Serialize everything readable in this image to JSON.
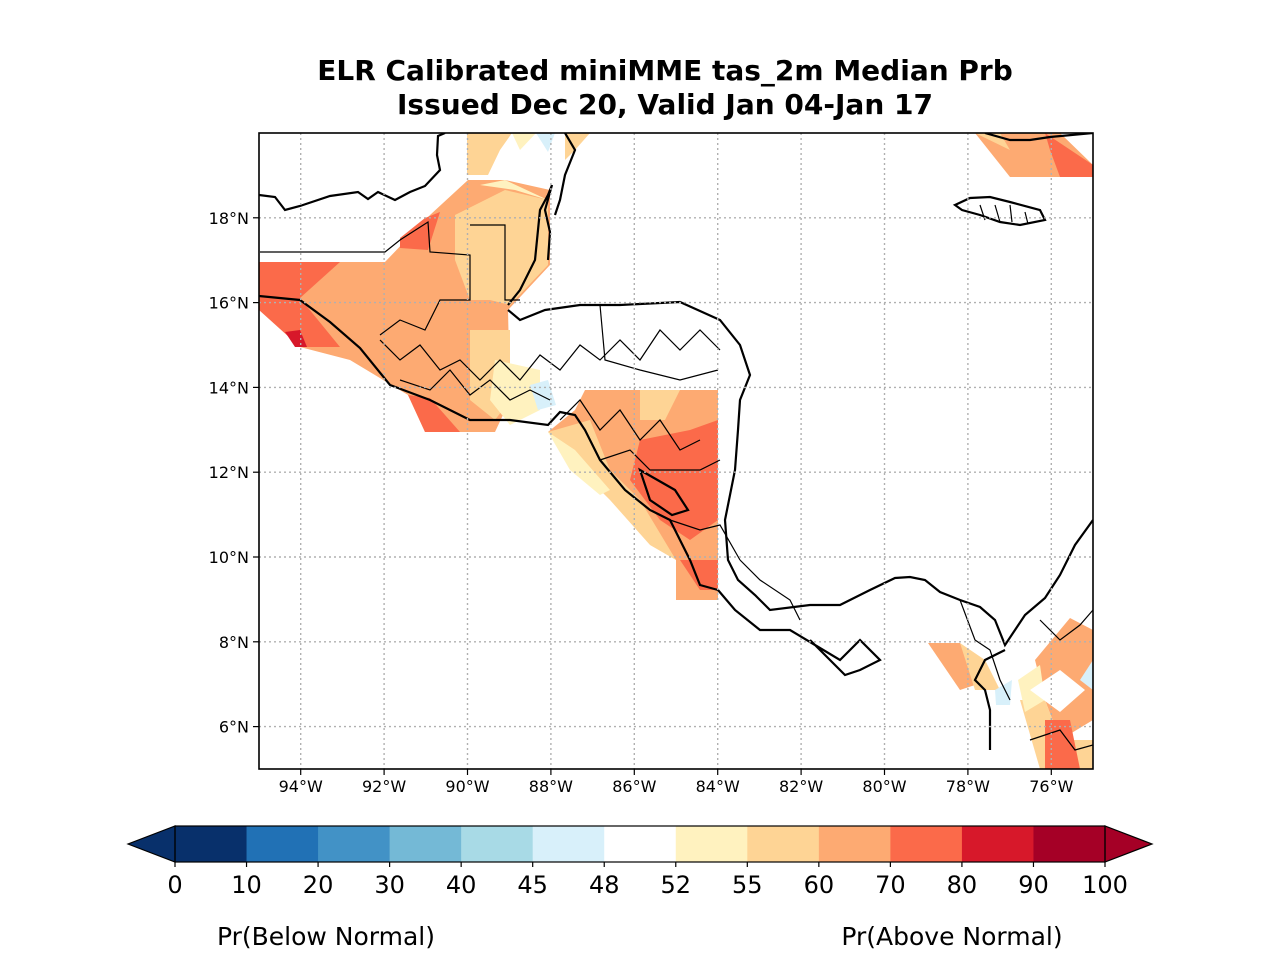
{
  "title": "ELR Calibrated miniMME tas_2m Median Prb",
  "subtitle": "Issued Dec 20, Valid Jan 04-Jan 17",
  "map": {
    "lon_range": [
      -95,
      -75
    ],
    "lat_range": [
      5,
      20
    ],
    "lon_ticks": [
      -94,
      -92,
      -90,
      -88,
      -86,
      -84,
      -82,
      -80,
      -78,
      -76
    ],
    "lat_ticks": [
      6,
      8,
      10,
      12,
      14,
      16,
      18
    ],
    "lon_labels": [
      "94°W",
      "92°W",
      "90°W",
      "88°W",
      "86°W",
      "84°W",
      "82°W",
      "80°W",
      "78°W",
      "76°W"
    ],
    "lat_labels": [
      "6°N",
      "8°N",
      "10°N",
      "12°N",
      "14°N",
      "16°N",
      "18°N"
    ],
    "gridlines": true
  },
  "colorbar": {
    "levels": [
      "0",
      "10",
      "20",
      "30",
      "40",
      "45",
      "48",
      "52",
      "55",
      "60",
      "70",
      "80",
      "90",
      "100"
    ],
    "colors": [
      "#08306b",
      "#2171b5",
      "#4292c6",
      "#74b9d6",
      "#a8dae6",
      "#d8f0fa",
      "#ffffff",
      "#fff2bf",
      "#fed495",
      "#fdaa72",
      "#fb6a4a",
      "#d7182a",
      "#a50026"
    ],
    "below_label": "Pr(Below Normal)",
    "above_label": "Pr(Above Normal)"
  }
}
